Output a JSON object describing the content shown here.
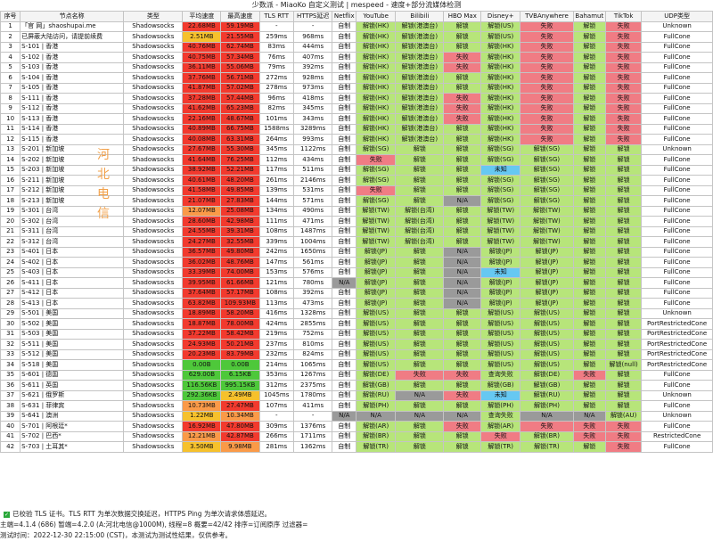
{
  "title": "少数派 - MiaoKo 自定义测试 | mespeed - 速度+部分流媒体检测",
  "headers": [
    "序号",
    "节点名称",
    "类型",
    "平均速度",
    "最高速度",
    "TLS RTT",
    "HTTPS延迟",
    "Netflix",
    "YouTube",
    "Bilibili",
    "HBO Max",
    "Disney+",
    "TVBAnywhere",
    "Bahamut",
    "TikTok",
    "UDP类型"
  ],
  "rows": [
    [
      "1",
      "「官 网」shaoshupai.me",
      "Shadowsocks",
      "22.68MB",
      "59.19MB",
      "-",
      "-",
      "自制",
      "解锁(HK)",
      "解锁(港澳台)",
      "解锁",
      "解锁(US)",
      "失败",
      "解锁",
      "失败",
      "Unknown"
    ],
    [
      "2",
      "已屏蔽大陆访问，请提前续费",
      "Shadowsocks",
      "2.51MB",
      "21.55MB",
      "259ms",
      "968ms",
      "自制",
      "解锁(HK)",
      "解锁(港澳台)",
      "解锁",
      "解锁(US)",
      "失败",
      "解锁",
      "失败",
      "FullCone"
    ],
    [
      "3",
      "S-101 | 香港",
      "Shadowsocks",
      "40.76MB",
      "62.74MB",
      "83ms",
      "444ms",
      "自制",
      "解锁(HK)",
      "解锁(港澳台)",
      "解锁",
      "解锁(HK)",
      "失败",
      "解锁",
      "失败",
      "FullCone"
    ],
    [
      "4",
      "S-102 | 香港",
      "Shadowsocks",
      "40.75MB",
      "57.34MB",
      "76ms",
      "407ms",
      "自制",
      "解锁(HK)",
      "解锁(港澳台)",
      "失败",
      "解锁(HK)",
      "失败",
      "解锁",
      "失败",
      "FullCone"
    ],
    [
      "5",
      "S-103 | 香港",
      "Shadowsocks",
      "36.11MB",
      "55.06MB",
      "79ms",
      "392ms",
      "自制",
      "解锁(HK)",
      "解锁(港澳台)",
      "失败",
      "解锁(HK)",
      "失败",
      "解锁",
      "失败",
      "FullCone"
    ],
    [
      "6",
      "S-104 | 香港",
      "Shadowsocks",
      "37.76MB",
      "56.71MB",
      "272ms",
      "928ms",
      "自制",
      "解锁(HK)",
      "解锁(港澳台)",
      "解锁",
      "解锁(HK)",
      "失败",
      "解锁",
      "失败",
      "FullCone"
    ],
    [
      "7",
      "S-105 | 香港",
      "Shadowsocks",
      "41.87MB",
      "57.02MB",
      "278ms",
      "973ms",
      "自制",
      "解锁(HK)",
      "解锁(港澳台)",
      "解锁",
      "解锁(HK)",
      "失败",
      "解锁",
      "失败",
      "FullCone"
    ],
    [
      "8",
      "S-111 | 香港",
      "Shadowsocks",
      "37.28MB",
      "57.44MB",
      "96ms",
      "418ms",
      "自制",
      "解锁(HK)",
      "解锁(港澳台)",
      "失败",
      "解锁(HK)",
      "失败",
      "解锁",
      "失败",
      "FullCone"
    ],
    [
      "9",
      "S-112 | 香港",
      "Shadowsocks",
      "41.62MB",
      "65.23MB",
      "82ms",
      "345ms",
      "自制",
      "解锁(HK)",
      "解锁(港澳台)",
      "失败",
      "解锁(HK)",
      "失败",
      "解锁",
      "失败",
      "FullCone"
    ],
    [
      "10",
      "S-113 | 香港",
      "Shadowsocks",
      "22.16MB",
      "48.67MB",
      "101ms",
      "343ms",
      "自制",
      "解锁(HK)",
      "解锁(港澳台)",
      "失败",
      "解锁(HK)",
      "失败",
      "解锁",
      "失败",
      "FullCone"
    ],
    [
      "11",
      "S-114 | 香港",
      "Shadowsocks",
      "40.89MB",
      "66.75MB",
      "1588ms",
      "3289ms",
      "自制",
      "解锁(HK)",
      "解锁(港澳台)",
      "解锁",
      "解锁(HK)",
      "失败",
      "解锁",
      "失败",
      "FullCone"
    ],
    [
      "12",
      "S-115 | 香港",
      "Shadowsocks",
      "40.08MB",
      "63.31MB",
      "264ms",
      "993ms",
      "自制",
      "解锁(HK)",
      "解锁(港澳台)",
      "解锁",
      "解锁(HK)",
      "失败",
      "解锁",
      "失败",
      "FullCone"
    ],
    [
      "13",
      "S-201 | 新加坡",
      "Shadowsocks",
      "27.67MB",
      "55.30MB",
      "345ms",
      "1122ms",
      "自制",
      "解锁(SG)",
      "解锁",
      "解锁",
      "解锁(SG)",
      "解锁(SG)",
      "解锁",
      "解锁",
      "Unknown"
    ],
    [
      "14",
      "S-202 | 新加坡",
      "Shadowsocks",
      "41.64MB",
      "76.25MB",
      "112ms",
      "434ms",
      "自制",
      "失败",
      "解锁",
      "解锁",
      "解锁(SG)",
      "解锁(SG)",
      "解锁",
      "解锁",
      "FullCone"
    ],
    [
      "15",
      "S-203 | 新加坡",
      "Shadowsocks",
      "38.92MB",
      "52.21MB",
      "117ms",
      "511ms",
      "自制",
      "解锁(SG)",
      "解锁",
      "解锁",
      "未知",
      "解锁(SG)",
      "解锁",
      "解锁",
      "FullCone"
    ],
    [
      "16",
      "S-211 | 新加坡",
      "Shadowsocks",
      "40.61MB",
      "48.20MB",
      "261ms",
      "2146ms",
      "自制",
      "解锁(SG)",
      "解锁",
      "解锁",
      "解锁(SG)",
      "解锁(SG)",
      "解锁",
      "解锁",
      "FullCone"
    ],
    [
      "17",
      "S-212 | 新加坡",
      "Shadowsocks",
      "41.58MB",
      "49.85MB",
      "139ms",
      "531ms",
      "自制",
      "失败",
      "解锁",
      "解锁",
      "解锁(SG)",
      "解锁(SG)",
      "解锁",
      "解锁",
      "FullCone"
    ],
    [
      "18",
      "S-213 | 新加坡",
      "Shadowsocks",
      "21.07MB",
      "27.83MB",
      "144ms",
      "571ms",
      "自制",
      "解锁(SG)",
      "解锁",
      "N/A",
      "解锁(SG)",
      "解锁(SG)",
      "解锁",
      "解锁",
      "FullCone"
    ],
    [
      "19",
      "S-301 | 台湾",
      "Shadowsocks",
      "12.07MB",
      "25.08MB",
      "134ms",
      "490ms",
      "自制",
      "解锁(TW)",
      "解锁(台湾)",
      "解锁",
      "解锁(TW)",
      "解锁(TW)",
      "解锁",
      "解锁",
      "FullCone"
    ],
    [
      "20",
      "S-302 | 台湾",
      "Shadowsocks",
      "28.60MB",
      "42.98MB",
      "111ms",
      "471ms",
      "自制",
      "解锁(TW)",
      "解锁(台湾)",
      "解锁",
      "解锁(TW)",
      "解锁(TW)",
      "解锁",
      "解锁",
      "FullCone"
    ],
    [
      "21",
      "S-311 | 台湾",
      "Shadowsocks",
      "24.55MB",
      "39.31MB",
      "108ms",
      "1487ms",
      "自制",
      "解锁(TW)",
      "解锁(台湾)",
      "解锁",
      "解锁(TW)",
      "解锁(TW)",
      "解锁",
      "解锁",
      "FullCone"
    ],
    [
      "22",
      "S-312 | 台湾",
      "Shadowsocks",
      "24.27MB",
      "32.55MB",
      "339ms",
      "1004ms",
      "自制",
      "解锁(TW)",
      "解锁(台湾)",
      "解锁",
      "解锁(TW)",
      "解锁(TW)",
      "解锁",
      "解锁",
      "FullCone"
    ],
    [
      "23",
      "S-401 | 日本",
      "Shadowsocks",
      "36.57MB",
      "49.80MB",
      "242ms",
      "1650ms",
      "自制",
      "解锁(JP)",
      "解锁",
      "N/A",
      "解锁(JP)",
      "解锁(JP)",
      "解锁",
      "解锁",
      "FullCone"
    ],
    [
      "24",
      "S-402 | 日本",
      "Shadowsocks",
      "36.02MB",
      "48.76MB",
      "147ms",
      "561ms",
      "自制",
      "解锁(JP)",
      "解锁",
      "N/A",
      "解锁(JP)",
      "解锁(JP)",
      "解锁",
      "解锁",
      "FullCone"
    ],
    [
      "25",
      "S-403 | 日本",
      "Shadowsocks",
      "33.39MB",
      "74.00MB",
      "153ms",
      "576ms",
      "自制",
      "解锁(JP)",
      "解锁",
      "N/A",
      "未知",
      "解锁(JP)",
      "解锁",
      "解锁",
      "FullCone"
    ],
    [
      "26",
      "S-411 | 日本",
      "Shadowsocks",
      "39.95MB",
      "61.66MB",
      "121ms",
      "780ms",
      "N/A",
      "解锁(JP)",
      "解锁",
      "N/A",
      "解锁(JP)",
      "解锁(JP)",
      "解锁",
      "解锁",
      "FullCone"
    ],
    [
      "27",
      "S-412 | 日本",
      "Shadowsocks",
      "37.64MB",
      "57.17MB",
      "108ms",
      "392ms",
      "自制",
      "解锁(JP)",
      "解锁",
      "N/A",
      "解锁(JP)",
      "解锁(JP)",
      "解锁",
      "解锁",
      "FullCone"
    ],
    [
      "28",
      "S-413 | 日本",
      "Shadowsocks",
      "63.82MB",
      "109.93MB",
      "113ms",
      "473ms",
      "自制",
      "解锁(JP)",
      "解锁",
      "N/A",
      "解锁(JP)",
      "解锁(JP)",
      "解锁",
      "解锁",
      "FullCone"
    ],
    [
      "29",
      "S-501 | 美国",
      "Shadowsocks",
      "18.89MB",
      "58.20MB",
      "416ms",
      "1328ms",
      "自制",
      "解锁(US)",
      "解锁",
      "解锁",
      "解锁(US)",
      "解锁(US)",
      "解锁",
      "解锁",
      "Unknown"
    ],
    [
      "30",
      "S-502 | 美国",
      "Shadowsocks",
      "18.87MB",
      "78.00MB",
      "424ms",
      "2855ms",
      "自制",
      "解锁(US)",
      "解锁",
      "解锁",
      "解锁(US)",
      "解锁(US)",
      "解锁",
      "解锁",
      "PortRestrictedCone"
    ],
    [
      "31",
      "S-503 | 美国",
      "Shadowsocks",
      "37.22MB",
      "58.42MB",
      "219ms",
      "752ms",
      "自制",
      "解锁(US)",
      "解锁",
      "解锁",
      "解锁(US)",
      "解锁(US)",
      "解锁",
      "解锁",
      "PortRestrictedCone"
    ],
    [
      "32",
      "S-511 | 美国",
      "Shadowsocks",
      "24.93MB",
      "50.21MB",
      "237ms",
      "810ms",
      "自制",
      "解锁(US)",
      "解锁",
      "解锁",
      "解锁(US)",
      "解锁(US)",
      "解锁",
      "解锁",
      "PortRestrictedCone"
    ],
    [
      "33",
      "S-512 | 美国",
      "Shadowsocks",
      "20.23MB",
      "83.79MB",
      "232ms",
      "824ms",
      "自制",
      "解锁(US)",
      "解锁",
      "解锁",
      "解锁(US)",
      "解锁(US)",
      "解锁",
      "解锁",
      "PortRestrictedCone"
    ],
    [
      "34",
      "S-518 | 美国",
      "Shadowsocks",
      "0.00B",
      "0.00B",
      "214ms",
      "1065ms",
      "自制",
      "解锁(US)",
      "解锁",
      "解锁",
      "解锁(US)",
      "解锁(US)",
      "解锁",
      "解锁(null)",
      "PortRestrictedCone"
    ],
    [
      "35",
      "S-601 | 德国",
      "Shadowsocks",
      "629.00B",
      "6.15KB",
      "353ms",
      "1267ms",
      "自制",
      "解锁(DE)",
      "失败",
      "失败",
      "查询失败",
      "解锁(DE)",
      "失败",
      "解锁",
      "FullCone"
    ],
    [
      "36",
      "S-611 | 英国",
      "Shadowsocks",
      "116.56KB",
      "995.15KB",
      "312ms",
      "2375ms",
      "自制",
      "解锁(GB)",
      "解锁",
      "解锁",
      "解锁(GB)",
      "解锁(GB)",
      "解锁",
      "解锁",
      "FullCone"
    ],
    [
      "37",
      "S-621 | 俄罗斯",
      "Shadowsocks",
      "292.36KB",
      "2.49MB",
      "1045ms",
      "1780ms",
      "自制",
      "解锁(RU)",
      "N/A",
      "失败",
      "未知",
      "解锁(RU)",
      "解锁",
      "解锁",
      "Unknown"
    ],
    [
      "38",
      "S-631 | 菲律宾",
      "Shadowsocks",
      "10.73MB",
      "27.47MB",
      "107ms",
      "411ms",
      "自制",
      "解锁(PH)",
      "解锁",
      "解锁",
      "解锁(PH)",
      "解锁(PH)",
      "解锁",
      "解锁",
      "FullCone"
    ],
    [
      "39",
      "S-641 | 澳洲",
      "Shadowsocks",
      "1.22MB",
      "10.34MB",
      "-",
      "-",
      "N/A",
      "N/A",
      "N/A",
      "N/A",
      "查询失败",
      "N/A",
      "N/A",
      "解锁(AU)",
      "Unknown"
    ],
    [
      "40",
      "S-701 | 阿根廷*",
      "Shadowsocks",
      "16.92MB",
      "47.80MB",
      "309ms",
      "1376ms",
      "自制",
      "解锁(AR)",
      "解锁",
      "失败",
      "解锁(AR)",
      "失败",
      "失败",
      "失败",
      "FullCone"
    ],
    [
      "41",
      "S-702 | 巴西*",
      "Shadowsocks",
      "12.21MB",
      "42.87MB",
      "266ms",
      "1711ms",
      "自制",
      "解锁(BR)",
      "解锁",
      "解锁",
      "失败",
      "解锁(BR)",
      "失败",
      "失败",
      "RestrictedCone"
    ],
    [
      "42",
      "S-703 | 土耳其*",
      "Shadowsocks",
      "3.50MB",
      "9.98MB",
      "281ms",
      "1362ms",
      "自制",
      "解锁(TR)",
      "解锁",
      "解锁",
      "解锁(TR)",
      "解锁(TR)",
      "解锁",
      "失败",
      "FullCone"
    ]
  ],
  "footer": {
    "line1": "已校验 TLS 证书。TLS RTT 为单次数据交换延迟，HTTPS Ping 为单次请求体感延迟。",
    "line2": "主端=4.1.4 (686) 暂端=4.2.0 (A:河北电信@1000M), 线程=8 概要=42/42 排序=订阅原序 过滤器=",
    "line3": "测试时间：2022-12-30 22:15:00 (CST)，本测试为测试性结果，仅供参考。"
  },
  "watermark_text": "河北电信",
  "cell_colors": {
    "unlock": "#b7e57a",
    "fail": "#f07c84",
    "na": "#9a9a9a",
    "unknown": "#66c8f2"
  },
  "speed_colors": {
    "fast": "#4ec83a",
    "mid": "#f6c12c",
    "slow": "#fa9a48",
    "red": "#f23a2e"
  }
}
